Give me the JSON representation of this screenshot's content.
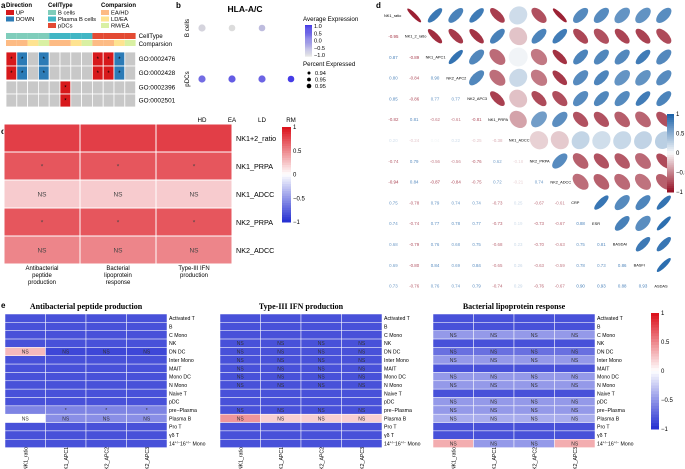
{
  "panel_labels": [
    "a",
    "b",
    "c",
    "d",
    "e"
  ],
  "colors": {
    "up": "#d7191c",
    "down": "#2c7bb6",
    "b_cells": "#7fcdbb",
    "plasma_b": "#41b6c4",
    "pdcs": "#e34a33",
    "ea_hd": "#fdbb84",
    "ld_ea": "#fee391",
    "rm_ea": "#d9f0a3",
    "nr": "#c8c8c8",
    "heat_red": "#e31a1c",
    "heat_blue": "#2b3bd4"
  },
  "panel_a": {
    "legends": [
      {
        "title": "Direction",
        "items": [
          "UP",
          "DOWN"
        ]
      },
      {
        "title": "CellType",
        "items": [
          "B cells",
          "Plasma B cells",
          "pDCs"
        ]
      },
      {
        "title": "Comparsion",
        "items": [
          "EA/HD",
          "LD/EA",
          "RM/EA"
        ]
      }
    ],
    "annotation_rows": [
      "CellType",
      "Comparsion"
    ],
    "rows": [
      "GO:0002476",
      "GO:0002428",
      "GO:0002396",
      "GO:0002501"
    ],
    "n_cols": 12,
    "celltype_bar": [
      "b_cells",
      "b_cells",
      "b_cells",
      "b_cells",
      "plasma_b",
      "plasma_b",
      "plasma_b",
      "plasma_b",
      "pdcs",
      "pdcs",
      "pdcs",
      "pdcs"
    ],
    "comparison_bar": [
      "ea_hd",
      "ea_hd",
      "ld_ea",
      "rm_ea",
      "ea_hd",
      "ea_hd",
      "ld_ea",
      "rm_ea",
      "ea_hd",
      "ea_hd",
      "ld_ea",
      "rm_ea"
    ],
    "matrix": [
      [
        "up",
        "down",
        "nr",
        "down",
        "nr",
        "nr",
        "nr",
        "nr",
        "up",
        "up",
        "down",
        "nr"
      ],
      [
        "up",
        "down",
        "nr",
        "down",
        "nr",
        "nr",
        "nr",
        "nr",
        "up",
        "up",
        "down",
        "nr"
      ],
      [
        "nr",
        "nr",
        "nr",
        "nr",
        "nr",
        "up",
        "nr",
        "nr",
        "nr",
        "nr",
        "nr",
        "nr"
      ],
      [
        "nr",
        "nr",
        "nr",
        "nr",
        "nr",
        "up",
        "nr",
        "nr",
        "nr",
        "nr",
        "nr",
        "nr"
      ]
    ],
    "star": "*"
  },
  "chart_data": [
    {
      "panel": "b",
      "type": "scatter",
      "title": "HLA-A/C",
      "x_categories": [
        "HD",
        "EA",
        "LD",
        "RM"
      ],
      "y_categories": [
        "B cells",
        "pDCs"
      ],
      "points": [
        {
          "x": "HD",
          "y": "B cells",
          "avg_expr": -0.9,
          "pct": 0.95
        },
        {
          "x": "EA",
          "y": "B cells",
          "avg_expr": -1.0,
          "pct": 0.94
        },
        {
          "x": "LD",
          "y": "B cells",
          "avg_expr": -0.6,
          "pct": 0.94
        },
        {
          "x": "HD",
          "y": "pDCs",
          "avg_expr": 0.4,
          "pct": 0.95
        },
        {
          "x": "EA",
          "y": "pDCs",
          "avg_expr": 0.6,
          "pct": 0.95
        },
        {
          "x": "LD",
          "y": "pDCs",
          "avg_expr": 0.5,
          "pct": 0.95
        },
        {
          "x": "RM",
          "y": "pDCs",
          "avg_expr": 1.0,
          "pct": 0.94
        }
      ],
      "legend_color_title": "Average Expression",
      "legend_color_ticks": [
        "1.0",
        "0.5",
        "0.0",
        "−0.5",
        "−1.0"
      ],
      "legend_size_title": "Percent Expressed",
      "legend_size_ticks": [
        "0.94",
        "0.95",
        "0.95"
      ]
    },
    {
      "panel": "c",
      "type": "heatmap",
      "columns": [
        "Antibacterial peptide production",
        "Bacterial lipoprotein response",
        "Type-III IFN production"
      ],
      "rows": [
        "NK1+2_ratio",
        "NK1_PRPA",
        "NK1_ADCC",
        "NK2_PRPA",
        "NK2_ADCC"
      ],
      "values": [
        [
          0.82,
          0.82,
          0.82
        ],
        [
          0.72,
          0.72,
          0.72
        ],
        [
          0.22,
          0.22,
          0.22
        ],
        [
          0.72,
          0.72,
          0.72
        ],
        [
          0.52,
          0.52,
          0.52
        ]
      ],
      "labels": [
        [
          "",
          "",
          ""
        ],
        [
          "*",
          "*",
          "*"
        ],
        [
          "NS",
          "NS",
          "NS"
        ],
        [
          "*",
          "*",
          "*"
        ],
        [
          "NS",
          "NS",
          "NS"
        ]
      ],
      "colorbar_ticks": [
        "1",
        "0.5",
        "0",
        "−0.5",
        "−1"
      ],
      "clim": [
        -1,
        1
      ]
    },
    {
      "panel": "d",
      "type": "heatmap",
      "subtype": "correlation-matrix",
      "variables": [
        "NK1_ratio",
        "NK1_2_ratio",
        "NK1_APC1",
        "NK2_APC2",
        "NK2_APC3",
        "NK1_PRPA",
        "NK1_ADCC",
        "NK2_PRPA",
        "NK2_ADCC",
        "CRP",
        "ESR",
        "BASDAI",
        "BASFI",
        "ASDAS"
      ],
      "lower_values": [
        [],
        [
          -0.95
        ],
        [
          0.87,
          -0.89
        ],
        [
          0.8,
          -0.84,
          0.9
        ],
        [
          0.85,
          -0.86,
          0.77,
          0.77
        ],
        [
          -0.82,
          0.81,
          -0.62,
          -0.61,
          -0.81
        ],
        [
          0.2,
          -0.24,
          0.04,
          0.22,
          -0.25,
          -0.38
        ],
        [
          -0.74,
          0.79,
          -0.56,
          -0.56,
          -0.76,
          0.62,
          -0.18
        ],
        [
          -0.94,
          0.84,
          -0.87,
          -0.84,
          -0.75,
          0.72,
          -0.21,
          0.74
        ],
        [
          0.75,
          -0.78,
          0.79,
          0.74,
          0.74,
          -0.73,
          0.25,
          -0.67,
          -0.61
        ],
        [
          0.74,
          -0.74,
          0.77,
          0.78,
          0.77,
          -0.73,
          0.19,
          -0.73,
          -0.67,
          0.88
        ],
        [
          0.68,
          -0.79,
          0.76,
          0.68,
          0.75,
          -0.68,
          0.23,
          -0.7,
          -0.63,
          0.75,
          0.81
        ],
        [
          0.69,
          -0.8,
          0.84,
          0.69,
          0.84,
          -0.65,
          0.26,
          -0.63,
          -0.59,
          0.78,
          0.73,
          0.86
        ],
        [
          0.73,
          -0.76,
          0.76,
          0.74,
          0.79,
          -0.74,
          0.29,
          -0.76,
          -0.67,
          0.9,
          0.93,
          0.88,
          0.93
        ]
      ],
      "colorbar_ticks": [
        "1",
        "0.5",
        "0",
        "−0.5",
        "−1"
      ],
      "clim": [
        -1,
        1
      ]
    },
    {
      "panel": "e",
      "type": "heatmap",
      "panels": [
        {
          "title": "Antibacterial peptide production",
          "rows": [
            "Activated T",
            "B",
            "C Mono",
            "NK",
            "DN DC",
            "Inter Mono",
            "MAIT",
            "Mono DC",
            "N Mono",
            "Naive T",
            "pDC",
            "pre−Plasma",
            "Plasma B",
            "Pro T",
            "γδ T",
            "14<sup>+/−</sup>16<sup>+/−</sup> Mono"
          ],
          "columns": [
            "NK1_ratio",
            "NK1_APC1",
            "NK2_APC2",
            "NK2_APC3"
          ],
          "values": [
            [
              -0.85,
              -0.85,
              -0.85,
              -0.85
            ],
            [
              -0.85,
              -0.85,
              -0.85,
              -0.85
            ],
            [
              -0.85,
              -0.85,
              -0.85,
              -0.85
            ],
            [
              -0.85,
              -0.85,
              -0.85,
              -0.85
            ],
            [
              0.3,
              -0.9,
              -0.9,
              -0.9
            ],
            [
              -0.85,
              -0.85,
              -0.85,
              -0.85
            ],
            [
              -0.85,
              -0.85,
              -0.85,
              -0.85
            ],
            [
              -0.85,
              -0.85,
              -0.85,
              -0.85
            ],
            [
              -0.85,
              -0.85,
              -0.85,
              -0.85
            ],
            [
              -0.85,
              -0.85,
              -0.85,
              -0.85
            ],
            [
              -0.85,
              -0.85,
              -0.85,
              -0.85
            ],
            [
              -0.6,
              -0.6,
              -0.6,
              -0.6
            ],
            [
              0.0,
              -0.55,
              -0.55,
              -0.55
            ],
            [
              -0.85,
              -0.85,
              -0.85,
              -0.85
            ],
            [
              -0.85,
              -0.85,
              -0.85,
              -0.85
            ],
            [
              -0.85,
              -0.85,
              -0.85,
              -0.85
            ]
          ],
          "labels": [
            [
              "",
              "",
              "",
              ""
            ],
            [
              "",
              "",
              "",
              ""
            ],
            [
              "",
              "",
              "",
              ""
            ],
            [
              "",
              "",
              "",
              ""
            ],
            [
              "NS",
              "NS",
              "NS",
              "NS"
            ],
            [
              "",
              "",
              "",
              ""
            ],
            [
              "",
              "",
              "",
              ""
            ],
            [
              "",
              "",
              "",
              ""
            ],
            [
              "",
              "",
              "",
              ""
            ],
            [
              "",
              "",
              "",
              ""
            ],
            [
              "",
              "",
              "",
              ""
            ],
            [
              "",
              "*",
              "*",
              "*"
            ],
            [
              "NS",
              "NS",
              "NS",
              "NS"
            ],
            [
              "",
              "",
              "",
              ""
            ],
            [
              "",
              "",
              "",
              ""
            ],
            [
              "",
              "",
              "",
              ""
            ]
          ]
        },
        {
          "title": "Type-III IFN production",
          "rows": [
            "Activated T",
            "B",
            "C Mono",
            "NK",
            "DN DC",
            "Inter Mono",
            "MAIT",
            "Mono DC",
            "N Mono",
            "Naive T",
            "pDC",
            "pre−Plasma",
            "Plasma B",
            "Pro T",
            "γδ T",
            "14<sup>+/−</sup>16<sup>+/−</sup> Mono"
          ],
          "columns": [
            "NK1_ratio",
            "NK1_APC1",
            "NK2_APC2",
            "NK2_APC3"
          ],
          "values": [
            [
              -0.85,
              -0.85,
              -0.85,
              -0.85
            ],
            [
              -0.85,
              -0.85,
              -0.85,
              -0.85
            ],
            [
              -0.85,
              -0.85,
              -0.85,
              -0.85
            ],
            [
              -0.85,
              -0.85,
              -0.85,
              -0.85
            ],
            [
              -0.85,
              -0.85,
              -0.85,
              -0.85
            ],
            [
              -0.85,
              -0.85,
              -0.85,
              -0.85
            ],
            [
              -0.85,
              -0.85,
              -0.85,
              -0.85
            ],
            [
              -0.85,
              -0.85,
              -0.85,
              -0.85
            ],
            [
              -0.85,
              -0.85,
              -0.85,
              -0.85
            ],
            [
              -0.85,
              -0.85,
              -0.85,
              -0.85
            ],
            [
              -0.85,
              -0.85,
              -0.85,
              -0.85
            ],
            [
              -0.85,
              -0.85,
              -0.85,
              -0.85
            ],
            [
              0.45,
              0.2,
              0.2,
              0.2
            ],
            [
              -0.85,
              -0.85,
              -0.85,
              -0.85
            ],
            [
              -0.85,
              -0.85,
              -0.85,
              -0.85
            ],
            [
              -0.85,
              -0.85,
              -0.85,
              -0.85
            ]
          ],
          "labels": [
            [
              "",
              "",
              "",
              ""
            ],
            [
              "",
              "",
              "",
              ""
            ],
            [
              "",
              "",
              "",
              ""
            ],
            [
              "NS",
              "NS",
              "NS",
              "NS"
            ],
            [
              "NS",
              "NS",
              "NS",
              "NS"
            ],
            [
              "NS",
              "NS",
              "NS",
              "NS"
            ],
            [
              "NS",
              "NS",
              "NS",
              "NS"
            ],
            [
              "NS",
              "NS",
              "NS",
              "NS"
            ],
            [
              "NS",
              "NS",
              "NS",
              "NS"
            ],
            [
              "",
              "",
              "",
              ""
            ],
            [
              "",
              "",
              "",
              ""
            ],
            [
              "NS",
              "NS",
              "NS",
              "NS"
            ],
            [
              "NS",
              "NS",
              "NS",
              "NS"
            ],
            [
              "",
              "",
              "",
              ""
            ],
            [
              "",
              "",
              "",
              ""
            ],
            [
              "",
              "",
              "",
              ""
            ]
          ]
        },
        {
          "title": "Bacterial lipoprotein response",
          "rows": [
            "Activated T",
            "B",
            "C Mono",
            "NK",
            "DN DC",
            "Inter Mono",
            "MAIT",
            "Mono DC",
            "N Mono",
            "Naive T",
            "pDC",
            "pre−Plasma",
            "Plasma B",
            "Pro T",
            "γδ T",
            "14<sup>+/−</sup>16<sup>+/−</sup> Mono"
          ],
          "columns": [
            "NK1_ratio",
            "NK1_APC1",
            "NK2_APC2",
            "NK2_APC3"
          ],
          "values": [
            [
              -0.85,
              -0.85,
              -0.85,
              -0.85
            ],
            [
              -0.85,
              -0.85,
              -0.85,
              -0.85
            ],
            [
              -0.5,
              -0.5,
              -0.5,
              -0.5
            ],
            [
              -0.85,
              -0.85,
              -0.85,
              -0.85
            ],
            [
              -0.7,
              -0.7,
              -0.7,
              -0.7
            ],
            [
              -0.5,
              -0.5,
              -0.5,
              -0.5
            ],
            [
              -0.85,
              -0.85,
              -0.85,
              -0.85
            ],
            [
              -0.5,
              -0.5,
              -0.5,
              -0.5
            ],
            [
              -0.5,
              -0.5,
              -0.5,
              -0.5
            ],
            [
              -0.85,
              -0.85,
              -0.85,
              -0.85
            ],
            [
              -0.5,
              -0.5,
              -0.5,
              -0.5
            ],
            [
              -0.5,
              -0.5,
              -0.5,
              -0.5
            ],
            [
              -0.4,
              -0.4,
              -0.4,
              -0.4
            ],
            [
              -0.85,
              -0.85,
              -0.85,
              -0.85
            ],
            [
              -0.85,
              -0.85,
              -0.85,
              -0.85
            ],
            [
              0.35,
              -0.5,
              -0.5,
              0.35
            ]
          ],
          "labels": [
            [
              "",
              "",
              "",
              ""
            ],
            [
              "",
              "",
              "",
              ""
            ],
            [
              "NS",
              "NS",
              "NS",
              "NS"
            ],
            [
              "",
              "",
              "",
              ""
            ],
            [
              "NS",
              "NS",
              "NS",
              "NS"
            ],
            [
              "NS",
              "NS",
              "NS",
              "NS"
            ],
            [
              "",
              "",
              "",
              ""
            ],
            [
              "NS",
              "NS",
              "NS",
              "NS"
            ],
            [
              "NS",
              "NS",
              "NS",
              "NS"
            ],
            [
              "",
              "",
              "",
              ""
            ],
            [
              "NS",
              "NS",
              "NS",
              "NS"
            ],
            [
              "NS",
              "NS",
              "NS",
              "NS"
            ],
            [
              "NS",
              "NS",
              "NS",
              "NS"
            ],
            [
              "",
              "",
              "",
              ""
            ],
            [
              "",
              "",
              "",
              ""
            ],
            [
              "NS",
              "NS",
              "NS",
              "NS"
            ]
          ]
        }
      ],
      "colorbar_ticks": [
        "1",
        "0.5",
        "0",
        "−0.5",
        "−1"
      ],
      "clim": [
        -1,
        1
      ]
    }
  ]
}
